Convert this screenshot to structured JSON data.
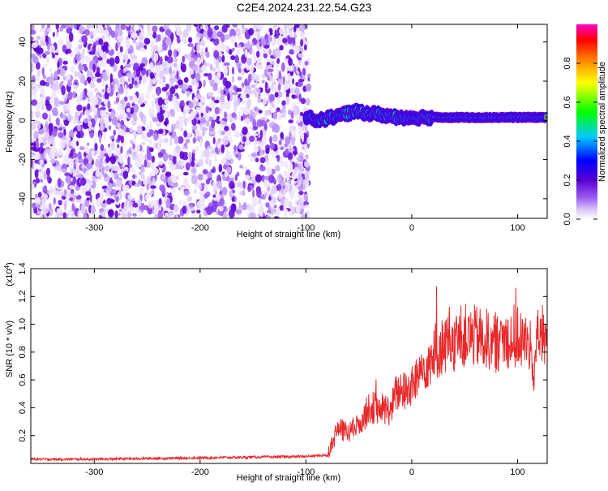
{
  "title": "C2E4.2024.231.22.54.G23",
  "chart_data": [
    {
      "type": "heatmap",
      "xlabel": "Height of straight line (km)",
      "ylabel": "Frequency (Hz)",
      "xlim": [
        -360,
        128
      ],
      "ylim": [
        -50,
        49
      ],
      "x_ticks": [
        -300,
        -200,
        -100,
        0,
        100
      ],
      "y_ticks": [
        -40,
        -20,
        0,
        20,
        40
      ],
      "colorbar": {
        "label": "Normalized spectral amplitude",
        "range": [
          0.0,
          1.0
        ],
        "ticks": [
          "0.0",
          "0.2",
          "0.4",
          "0.6",
          "0.8"
        ],
        "tick_values": [
          0.0,
          0.2,
          0.4,
          0.6,
          0.8
        ],
        "colors": [
          "#ffffff",
          "#9b5cf0",
          "#5a00d2",
          "#0000ff",
          "#00c8ff",
          "#00ff00",
          "#ffff00",
          "#ff8000",
          "#ff0000",
          "#ff00c8"
        ]
      },
      "noise_region": {
        "x": [
          -360,
          -97
        ],
        "y": [
          -50,
          49
        ]
      },
      "signal_ridge": [
        {
          "x": -100,
          "y": 1.5
        },
        {
          "x": -90,
          "y": 0
        },
        {
          "x": -80,
          "y": 1
        },
        {
          "x": -70,
          "y": 2
        },
        {
          "x": -60,
          "y": 3.5
        },
        {
          "x": -50,
          "y": 4.5
        },
        {
          "x": -40,
          "y": 3.5
        },
        {
          "x": -30,
          "y": 3
        },
        {
          "x": -20,
          "y": 2
        },
        {
          "x": -10,
          "y": 1.5
        },
        {
          "x": 0,
          "y": 1.5
        },
        {
          "x": 20,
          "y": 1.5
        },
        {
          "x": 60,
          "y": 1.5
        },
        {
          "x": 100,
          "y": 1.5
        },
        {
          "x": 128,
          "y": 1.5
        }
      ]
    },
    {
      "type": "line",
      "xlabel": "Height of straight line (km)",
      "ylabel": "SNR (10 * v/v)",
      "y_multiplier": "(x10",
      "y_multiplier_exp": "4",
      "xlim": [
        -360,
        128
      ],
      "ylim": [
        0,
        14000
      ],
      "x_ticks": [
        -300,
        -200,
        -100,
        0,
        100
      ],
      "y_ticks": [
        2000,
        4000,
        6000,
        8000,
        10000,
        12000,
        14000
      ],
      "y_tick_labels": [
        "0.2",
        "0.4",
        "0.6",
        "0.8",
        "1.0",
        "1.2",
        "1.4"
      ],
      "color": "#e8282a",
      "x": [
        -360,
        -300,
        -200,
        -100,
        -80,
        -75,
        -70,
        -60,
        -50,
        -40,
        -30,
        -20,
        -15,
        -10,
        -5,
        0,
        10,
        20,
        30,
        40,
        50,
        60,
        70,
        80,
        90,
        100,
        110,
        115,
        120,
        125,
        128
      ],
      "values": [
        300,
        300,
        400,
        500,
        600,
        1500,
        2500,
        2200,
        2800,
        4000,
        4000,
        3800,
        5000,
        5200,
        5200,
        5500,
        6800,
        7700,
        8500,
        8800,
        9200,
        9100,
        8900,
        8700,
        9000,
        9000,
        8600,
        6600,
        9300,
        9000,
        9700
      ]
    }
  ]
}
